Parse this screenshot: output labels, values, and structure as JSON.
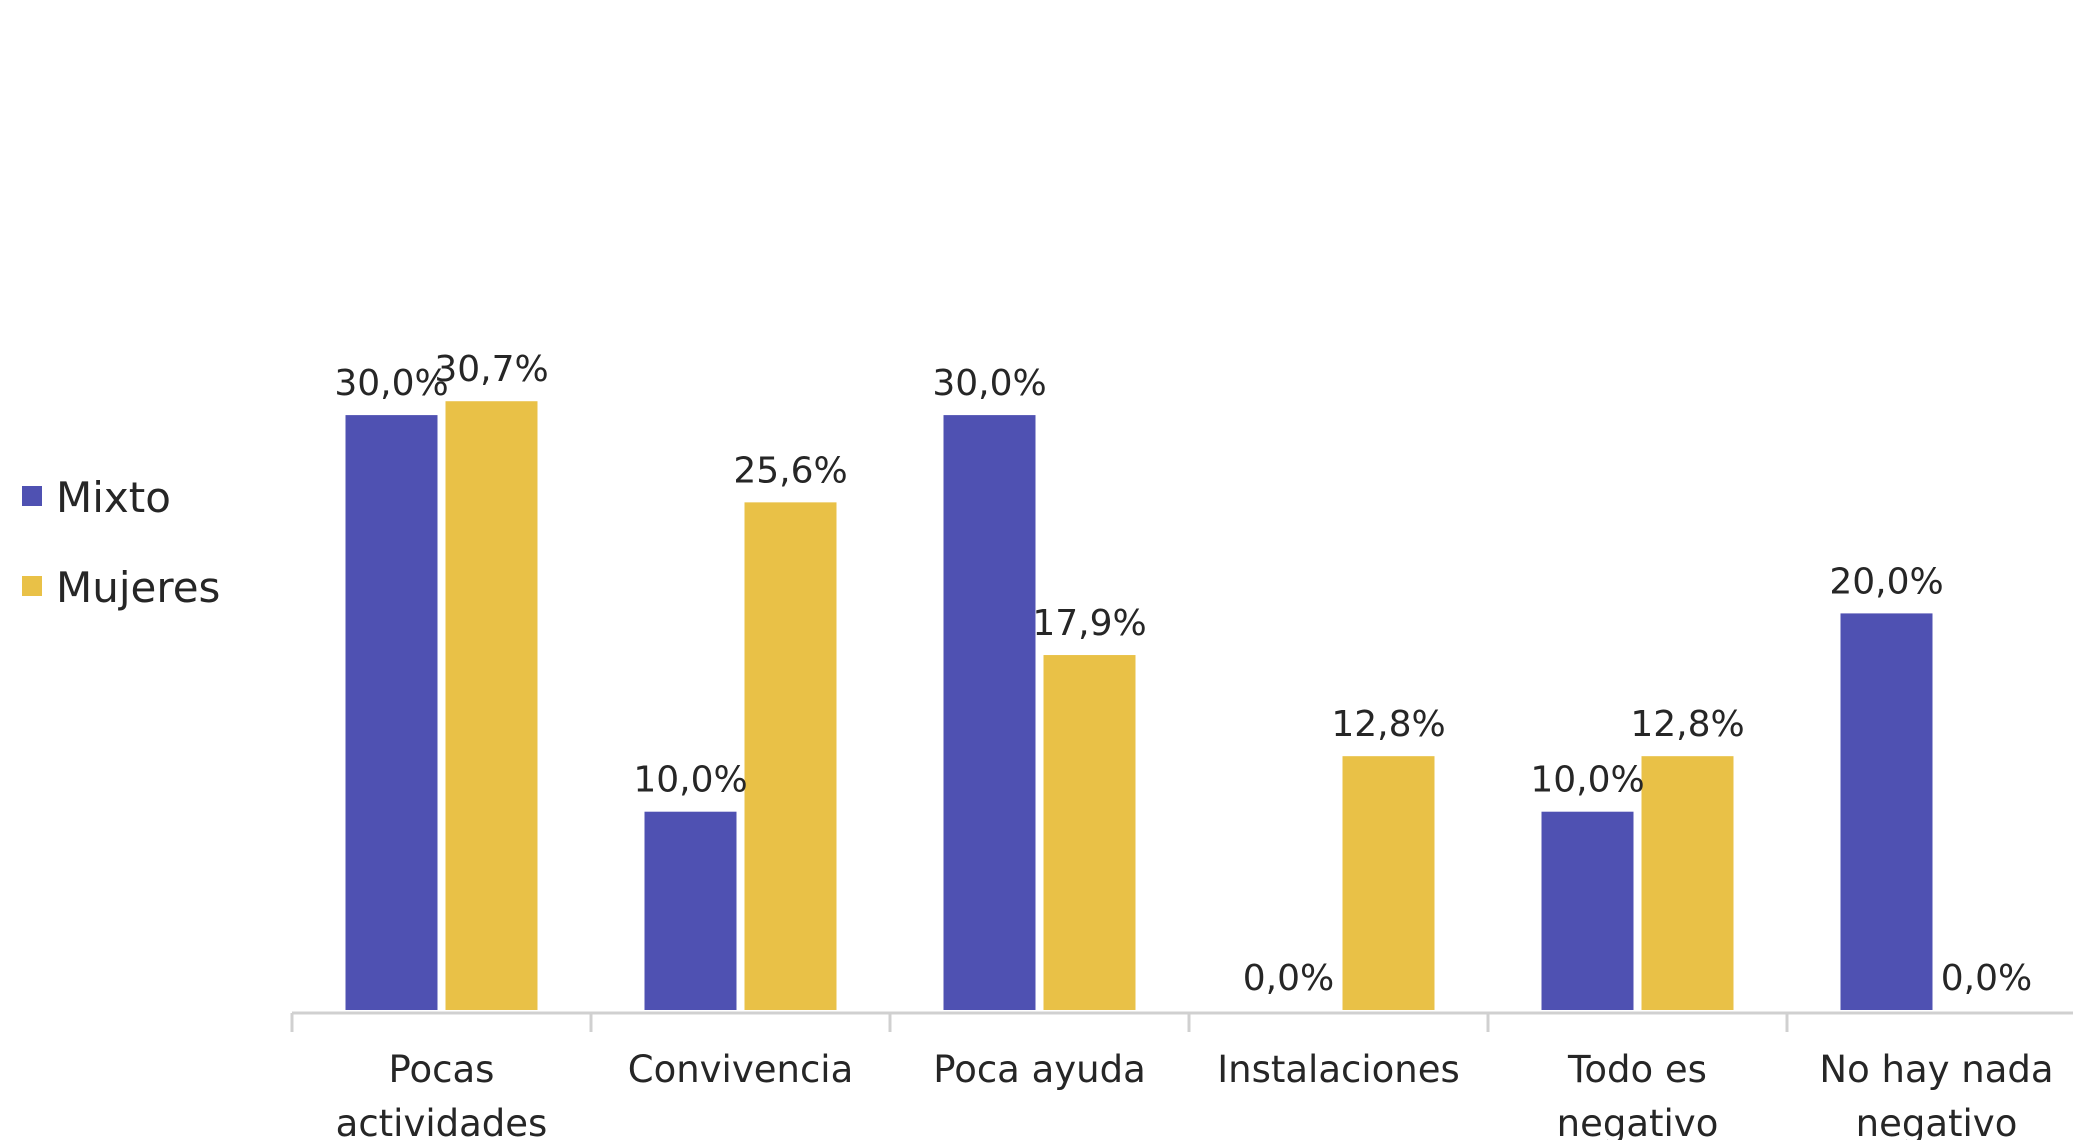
{
  "chart_data": {
    "type": "bar",
    "title": "",
    "xlabel": "",
    "ylabel": "",
    "ylim": [
      0,
      32
    ],
    "grid": false,
    "legend_position": "left",
    "categories": [
      [
        "Pocas",
        "actividades"
      ],
      [
        "Convivencia"
      ],
      [
        "Poca ayuda"
      ],
      [
        "Instalaciones"
      ],
      [
        "Todo es",
        "negativo"
      ],
      [
        "No hay nada",
        "negativo"
      ]
    ],
    "series": [
      {
        "name": "Mixto",
        "color": "#4f51b2",
        "values": [
          30.0,
          10.0,
          30.0,
          0.0,
          10.0,
          20.0
        ],
        "labels": [
          "30,0%",
          "10,0%",
          "30,0%",
          "0,0%",
          "10,0%",
          "20,0%"
        ]
      },
      {
        "name": "Mujeres",
        "color": "#e9c147",
        "values": [
          30.7,
          25.6,
          17.9,
          12.8,
          12.8,
          0.0
        ],
        "labels": [
          "30,7%",
          "25,6%",
          "17,9%",
          "12,8%",
          "12,8%",
          "0,0%"
        ]
      }
    ]
  }
}
